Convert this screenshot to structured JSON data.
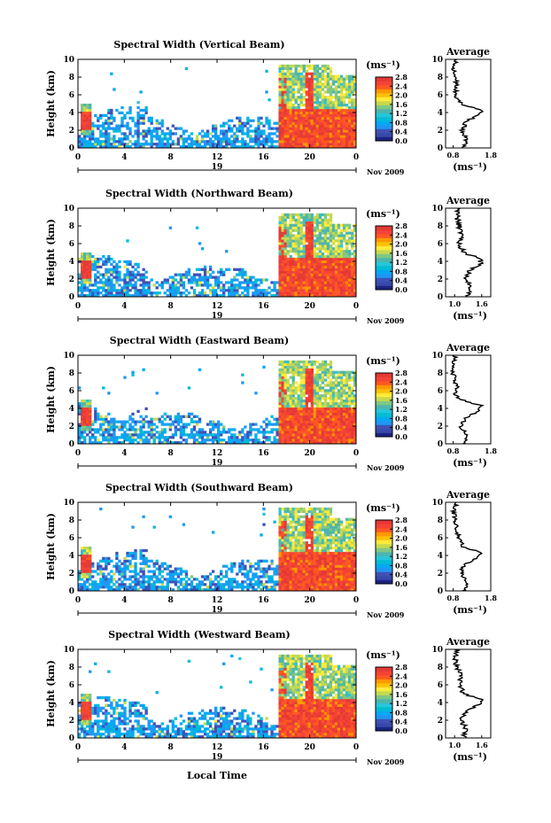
{
  "figure": {
    "xlabel": "Local Time",
    "date_label": "Nov 2009",
    "day_label": "19",
    "cb_unit": "(ms⁻¹)",
    "avg_title": "Average",
    "avg_unit": "(ms⁻¹)"
  },
  "colormap": [
    "#1a237e",
    "#3949ab",
    "#3f51b5",
    "#2196f3",
    "#03a9f4",
    "#00bcd4",
    "#26c6da",
    "#4db6ac",
    "#81c784",
    "#c6d94e",
    "#ffeb3b",
    "#ffc107",
    "#ff9800",
    "#ff5722",
    "#f44336",
    "#e53935"
  ],
  "chart_data": [
    {
      "type": "heatmap",
      "title": "Spectral Width (Vertical Beam)",
      "ylabel": "Height (km)",
      "x_ticks": [
        "0",
        "4",
        "8",
        "12",
        "16",
        "20",
        "0"
      ],
      "y_ticks": [
        "0",
        "2",
        "4",
        "6",
        "8",
        "10"
      ],
      "xlim": [
        0,
        24
      ],
      "ylim": [
        0,
        10
      ],
      "colorbar_ticks": [
        "0.0",
        "0.4",
        "0.8",
        "1.2",
        "1.6",
        "2.0",
        "2.4",
        "2.8"
      ],
      "colorbar_range": [
        0,
        2.8
      ],
      "upper_layer_top_km": 4.3
    },
    {
      "type": "line",
      "title": "Average",
      "xlabel": "(ms⁻¹)",
      "x_ticks": [
        "0.8",
        "1.8"
      ],
      "y_ticks": [
        "0",
        "2",
        "4",
        "6",
        "8",
        "10"
      ],
      "xlim": [
        0.6,
        1.8
      ],
      "ylim": [
        0,
        10
      ],
      "series": [
        {
          "y": [
            0,
            1,
            2,
            3,
            3.8,
            4.3,
            5,
            6,
            7,
            8,
            9,
            10
          ],
          "x": [
            1.1,
            1.15,
            1.05,
            1.15,
            1.5,
            1.55,
            1.0,
            0.85,
            0.9,
            0.85,
            0.8,
            0.9
          ]
        }
      ]
    },
    {
      "type": "heatmap",
      "title": "Spectral Width (Northward Beam)",
      "ylabel": "Height (km)",
      "x_ticks": [
        "0",
        "4",
        "8",
        "12",
        "16",
        "20",
        "0"
      ],
      "y_ticks": [
        "0",
        "2",
        "4",
        "6",
        "8",
        "10"
      ],
      "xlim": [
        0,
        24
      ],
      "ylim": [
        0,
        10
      ],
      "colorbar_ticks": [
        "0.0",
        "0.4",
        "0.8",
        "1.2",
        "1.6",
        "2.0",
        "2.4",
        "2.8"
      ],
      "colorbar_range": [
        0,
        2.8
      ],
      "upper_layer_top_km": 4.3
    },
    {
      "type": "line",
      "title": "Average",
      "xlabel": "(ms⁻¹)",
      "x_ticks": [
        "1.0",
        "1.6"
      ],
      "y_ticks": [
        "0",
        "2",
        "4",
        "6",
        "8",
        "10"
      ],
      "xlim": [
        0.8,
        1.8
      ],
      "ylim": [
        0,
        10
      ],
      "series": [
        {
          "y": [
            0,
            1,
            2,
            3,
            3.8,
            4.3,
            5,
            6,
            7,
            8,
            9,
            10
          ],
          "x": [
            1.3,
            1.35,
            1.25,
            1.35,
            1.6,
            1.55,
            1.2,
            1.1,
            1.15,
            1.1,
            1.05,
            1.1
          ]
        }
      ]
    },
    {
      "type": "heatmap",
      "title": "Spectral Width (Eastward Beam)",
      "ylabel": "Height (km)",
      "x_ticks": [
        "0",
        "4",
        "8",
        "12",
        "16",
        "20",
        "0"
      ],
      "y_ticks": [
        "0",
        "2",
        "4",
        "6",
        "8",
        "10"
      ],
      "xlim": [
        0,
        24
      ],
      "ylim": [
        0,
        10
      ],
      "colorbar_ticks": [
        "0.0",
        "0.4",
        "0.8",
        "1.2",
        "1.6",
        "2.0",
        "2.4",
        "2.8"
      ],
      "colorbar_range": [
        0,
        2.8
      ],
      "upper_layer_top_km": 4.2
    },
    {
      "type": "line",
      "title": "Average",
      "xlabel": "(ms⁻¹)",
      "x_ticks": [
        "0.8",
        "1.8"
      ],
      "y_ticks": [
        "0",
        "2",
        "4",
        "6",
        "8",
        "10"
      ],
      "xlim": [
        0.6,
        1.8
      ],
      "ylim": [
        0,
        10
      ],
      "series": [
        {
          "y": [
            0,
            1,
            2,
            3,
            3.8,
            4.3,
            5,
            5.7,
            6.5,
            8,
            9,
            10
          ],
          "x": [
            1.1,
            1.15,
            1.0,
            1.15,
            1.5,
            1.55,
            1.0,
            0.85,
            0.9,
            0.8,
            0.8,
            0.85
          ]
        }
      ]
    },
    {
      "type": "heatmap",
      "title": "Spectral Width (Southward Beam)",
      "ylabel": "Height (km)",
      "x_ticks": [
        "0",
        "4",
        "8",
        "12",
        "16",
        "20",
        "0"
      ],
      "y_ticks": [
        "0",
        "2",
        "4",
        "6",
        "8",
        "10"
      ],
      "xlim": [
        0,
        24
      ],
      "ylim": [
        0,
        10
      ],
      "colorbar_ticks": [
        "0.0",
        "0.4",
        "0.8",
        "1.2",
        "1.6",
        "2.0",
        "2.4",
        "2.8"
      ],
      "colorbar_range": [
        0,
        2.8
      ],
      "upper_layer_top_km": 4.3
    },
    {
      "type": "line",
      "title": "Average",
      "xlabel": "(ms⁻¹)",
      "x_ticks": [
        "0.8",
        "1.8"
      ],
      "y_ticks": [
        "0",
        "2",
        "4",
        "6",
        "8",
        "10"
      ],
      "xlim": [
        0.6,
        1.8
      ],
      "ylim": [
        0,
        10
      ],
      "series": [
        {
          "y": [
            0,
            1,
            2,
            3,
            3.8,
            4.3,
            5,
            6,
            7,
            8,
            9,
            10
          ],
          "x": [
            1.1,
            1.15,
            1.0,
            1.1,
            1.5,
            1.55,
            1.05,
            0.95,
            0.9,
            0.85,
            0.8,
            0.9
          ]
        }
      ]
    },
    {
      "type": "heatmap",
      "title": "Spectral Width (Westward Beam)",
      "ylabel": "Height (km)",
      "x_ticks": [
        "0",
        "4",
        "8",
        "12",
        "16",
        "20",
        "0"
      ],
      "y_ticks": [
        "0",
        "2",
        "4",
        "6",
        "8",
        "10"
      ],
      "xlim": [
        0,
        24
      ],
      "ylim": [
        0,
        10
      ],
      "colorbar_ticks": [
        "0.0",
        "0.4",
        "0.8",
        "1.2",
        "1.6",
        "2.0",
        "2.4",
        "2.8"
      ],
      "colorbar_range": [
        0,
        2.8
      ],
      "upper_layer_top_km": 4.3
    },
    {
      "type": "line",
      "title": "Average",
      "xlabel": "(ms⁻¹)",
      "x_ticks": [
        "1.0",
        "1.6"
      ],
      "y_ticks": [
        "0",
        "2",
        "4",
        "6",
        "8",
        "10"
      ],
      "xlim": [
        0.8,
        1.8
      ],
      "ylim": [
        0,
        10
      ],
      "series": [
        {
          "y": [
            0,
            1,
            2,
            3,
            3.8,
            4.3,
            5,
            6,
            7,
            8,
            9,
            10
          ],
          "x": [
            1.2,
            1.25,
            1.15,
            1.25,
            1.55,
            1.6,
            1.2,
            1.1,
            1.15,
            1.05,
            1.0,
            1.05
          ]
        }
      ]
    }
  ]
}
